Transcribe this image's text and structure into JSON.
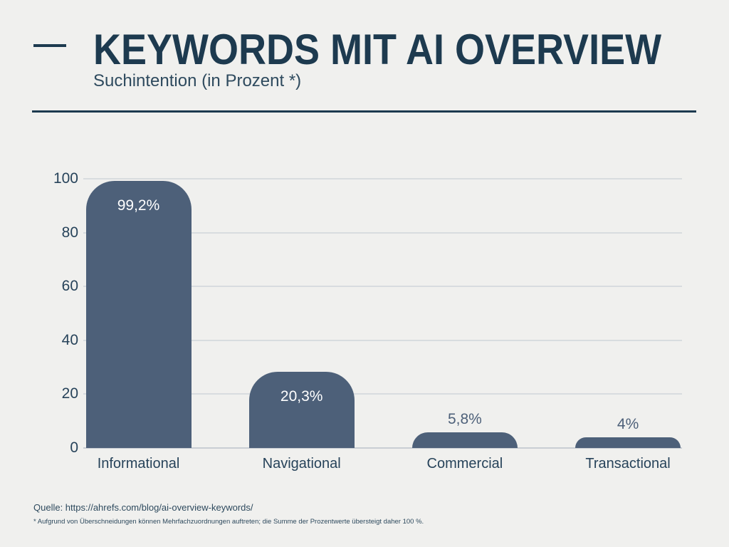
{
  "header": {
    "title": "KEYWORDS MIT AI OVERVIEW",
    "subtitle": "Suchintention (in Prozent *)"
  },
  "chart_data": {
    "type": "bar",
    "title": "KEYWORDS MIT AI OVERVIEW",
    "subtitle": "Suchintention (in Prozent *)",
    "categories": [
      "Informational",
      "Navigational",
      "Commercial",
      "Transactional"
    ],
    "values": [
      99.2,
      20.3,
      5.8,
      4
    ],
    "value_labels": [
      "99,2%",
      "20,3%",
      "5,8%",
      "4%"
    ],
    "label_positions": [
      "inside",
      "inside",
      "outside",
      "outside"
    ],
    "xlabel": "",
    "ylabel": "",
    "ylim": [
      0,
      100
    ],
    "yticks": [
      0,
      20,
      40,
      60,
      80,
      100
    ],
    "grid": "horizontal-only",
    "legend": "none",
    "bar_color": "#4d6079",
    "inside_label_color": "#ffffff",
    "outside_label_color": "#4d6079"
  },
  "footer": {
    "source": "Quelle: https://ahrefs.com/blog/ai-overview-keywords/",
    "footnote": "* Aufgrund von Überschneidungen können Mehrfachzuordnungen auftreten; die Summe der Prozentwerte übersteigt daher 100 %."
  },
  "colors": {
    "background": "#f0f0ee",
    "accent_navy": "#1d3a4f",
    "axis_text": "#27435a",
    "gridline": "#d8dcdf",
    "bar": "#4d6079"
  }
}
